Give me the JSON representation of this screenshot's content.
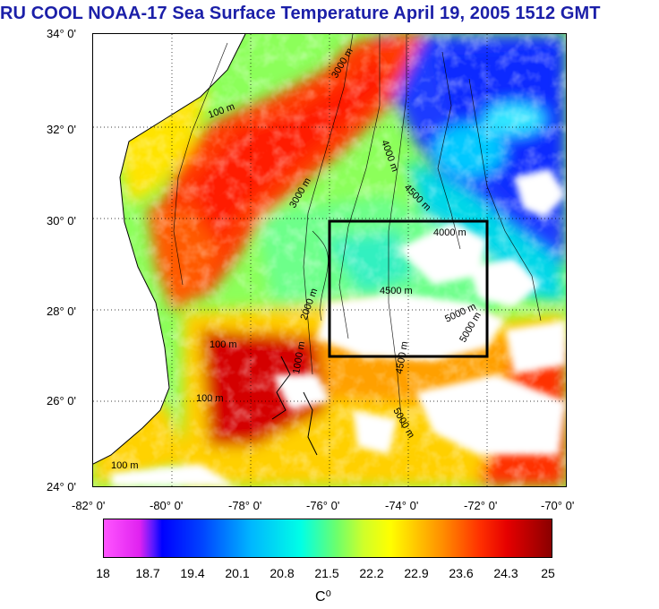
{
  "title": "RU COOL  NOAA-17 Sea Surface Temperature April 19, 2005 1512 GMT",
  "map": {
    "lon_range": [
      -82,
      -70
    ],
    "lat_range": [
      24,
      34
    ],
    "study_box": {
      "lon": [
        -76,
        -72
      ],
      "lat": [
        27,
        30
      ]
    },
    "y_ticks": [
      "34° 0'",
      "32° 0'",
      "30° 0'",
      "28° 0'",
      "26° 0'",
      "24° 0'"
    ],
    "x_ticks": [
      "-82° 0'",
      "-80° 0'",
      "-78° 0'",
      "-76° 0'",
      "-74° 0'",
      "-72° 0'",
      "-70° 0'"
    ],
    "contour_labels": [
      "100 m",
      "1000 m",
      "2000 m",
      "3000 m",
      "4000 m",
      "4500 m",
      "5000 m"
    ]
  },
  "colorbar": {
    "ticks": [
      "18",
      "18.7",
      "19.4",
      "20.1",
      "20.8",
      "21.5",
      "22.2",
      "22.9",
      "23.6",
      "24.3",
      "25"
    ],
    "unit": "C⁰"
  }
}
